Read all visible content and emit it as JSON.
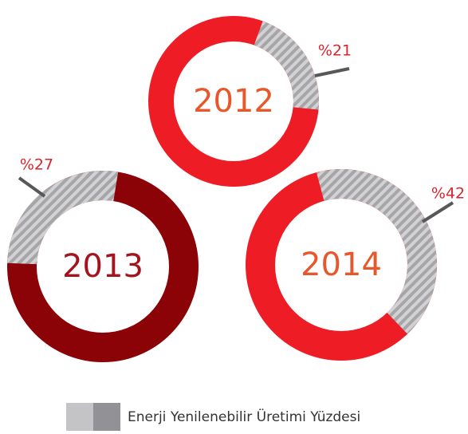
{
  "chart_data": {
    "type": "donut",
    "categories": [
      "2012",
      "2013",
      "2014"
    ],
    "ring_colors": [
      "#ee1d25",
      "#8b0306",
      "#ee1d25"
    ],
    "category_colors": [
      "#e8572b",
      "#a3141f",
      "#e8572b"
    ],
    "series": [
      {
        "name": "Enerji Yenilenebilir Üretimi Yüzdesi",
        "color": "#a6a6a8",
        "values": [
          21,
          27,
          42
        ],
        "value_labels": [
          "%21",
          "%27",
          "%42"
        ],
        "label_color": "#d8262f"
      }
    ],
    "legend": "bottom"
  }
}
